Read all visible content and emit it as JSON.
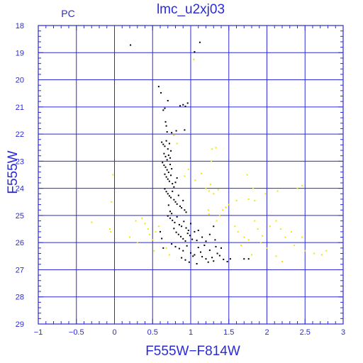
{
  "chart_data": {
    "type": "scatter",
    "title": "lmc_u2xj03",
    "corner_label": "PC",
    "xlabel": "F555W−F814W",
    "ylabel": "F555W",
    "xlim": [
      -1,
      3
    ],
    "ylim": [
      29,
      18
    ],
    "y_inverted": true,
    "grid": true,
    "x_ticks": [
      -1,
      -0.5,
      0,
      0.5,
      1,
      1.5,
      2,
      2.5,
      3
    ],
    "x_tick_labels": [
      "−1",
      "−0.5",
      "0",
      "0.5",
      "1",
      "1.5",
      "2",
      "2.5",
      "3"
    ],
    "y_ticks": [
      18,
      19,
      20,
      21,
      22,
      23,
      24,
      25,
      26,
      27,
      28,
      29
    ],
    "y_tick_labels": [
      "18",
      "19",
      "20",
      "21",
      "22",
      "23",
      "24",
      "25",
      "26",
      "27",
      "28",
      "29"
    ],
    "colors": {
      "axes": "#2a2ad6",
      "grid": "#2a2ad6",
      "series_black": "#000000",
      "series_yellow": "#f2e600"
    },
    "series": [
      {
        "color": "#000000",
        "points": [
          [
            0.21,
            18.72
          ],
          [
            1.05,
            18.97
          ],
          [
            1.12,
            18.62
          ],
          [
            0.58,
            20.25
          ],
          [
            0.61,
            20.48
          ],
          [
            0.64,
            21.12
          ],
          [
            0.66,
            21.05
          ],
          [
            0.7,
            20.77
          ],
          [
            0.9,
            20.92
          ],
          [
            0.93,
            20.98
          ],
          [
            0.86,
            20.96
          ],
          [
            0.96,
            20.86
          ],
          [
            0.67,
            21.55
          ],
          [
            0.68,
            21.7
          ],
          [
            0.69,
            21.92
          ],
          [
            0.81,
            21.88
          ],
          [
            0.75,
            21.95
          ],
          [
            0.92,
            21.85
          ],
          [
            0.62,
            22.3
          ],
          [
            0.64,
            22.38
          ],
          [
            0.66,
            22.45
          ],
          [
            0.68,
            22.25
          ],
          [
            0.7,
            22.55
          ],
          [
            0.72,
            22.35
          ],
          [
            0.74,
            22.62
          ],
          [
            0.65,
            22.72
          ],
          [
            0.67,
            22.83
          ],
          [
            0.69,
            22.95
          ],
          [
            0.71,
            22.78
          ],
          [
            0.73,
            22.88
          ],
          [
            0.63,
            23.05
          ],
          [
            0.65,
            23.15
          ],
          [
            0.67,
            23.22
          ],
          [
            0.69,
            23.32
          ],
          [
            0.71,
            23.41
          ],
          [
            0.73,
            23.12
          ],
          [
            0.75,
            23.28
          ],
          [
            0.66,
            23.48
          ],
          [
            0.68,
            23.58
          ],
          [
            0.7,
            23.66
          ],
          [
            0.72,
            23.74
          ],
          [
            0.74,
            23.52
          ],
          [
            0.76,
            23.83
          ],
          [
            0.78,
            23.95
          ],
          [
            0.8,
            23.78
          ],
          [
            0.82,
            23.62
          ],
          [
            0.66,
            24.02
          ],
          [
            0.68,
            24.12
          ],
          [
            0.7,
            24.2
          ],
          [
            0.72,
            24.28
          ],
          [
            0.74,
            24.34
          ],
          [
            0.76,
            24.11
          ],
          [
            0.78,
            24.42
          ],
          [
            0.8,
            24.5
          ],
          [
            0.82,
            24.58
          ],
          [
            0.84,
            24.26
          ],
          [
            0.86,
            24.66
          ],
          [
            0.88,
            24.72
          ],
          [
            0.9,
            24.45
          ],
          [
            0.92,
            24.8
          ],
          [
            0.94,
            24.88
          ],
          [
            0.71,
            24.62
          ],
          [
            0.73,
            24.85
          ],
          [
            0.75,
            24.93
          ],
          [
            0.7,
            25.02
          ],
          [
            0.73,
            25.1
          ],
          [
            0.76,
            25.18
          ],
          [
            0.79,
            25.26
          ],
          [
            0.82,
            25.05
          ],
          [
            0.85,
            25.34
          ],
          [
            0.88,
            25.4
          ],
          [
            0.91,
            25.22
          ],
          [
            0.94,
            25.46
          ],
          [
            0.97,
            25.55
          ],
          [
            1.0,
            25.3
          ],
          [
            0.78,
            25.48
          ],
          [
            0.81,
            25.62
          ],
          [
            0.84,
            25.7
          ],
          [
            0.87,
            25.78
          ],
          [
            0.9,
            25.86
          ],
          [
            0.93,
            25.94
          ],
          [
            0.96,
            25.66
          ],
          [
            0.99,
            25.74
          ],
          [
            1.02,
            25.88
          ],
          [
            1.05,
            25.6
          ],
          [
            1.08,
            25.92
          ],
          [
            0.75,
            26.05
          ],
          [
            0.8,
            26.15
          ],
          [
            0.85,
            26.22
          ],
          [
            0.9,
            26.3
          ],
          [
            0.95,
            26.12
          ],
          [
            1.0,
            26.38
          ],
          [
            1.05,
            26.45
          ],
          [
            1.1,
            26.18
          ],
          [
            1.15,
            26.52
          ],
          [
            1.2,
            26.6
          ],
          [
            1.25,
            26.28
          ],
          [
            1.3,
            26.68
          ],
          [
            1.35,
            26.4
          ],
          [
            1.4,
            26.2
          ],
          [
            0.88,
            26.56
          ],
          [
            0.93,
            26.64
          ],
          [
            0.98,
            26.72
          ],
          [
            1.03,
            26.5
          ],
          [
            1.08,
            26.78
          ],
          [
            1.13,
            26.35
          ],
          [
            1.18,
            26.1
          ],
          [
            1.23,
            26.72
          ],
          [
            1.28,
            26.55
          ],
          [
            1.33,
            26.15
          ],
          [
            1.38,
            26.48
          ],
          [
            1.43,
            26.62
          ],
          [
            1.48,
            26.7
          ],
          [
            1.52,
            26.6
          ],
          [
            1.7,
            26.6
          ],
          [
            1.76,
            26.6
          ],
          [
            0.62,
            25.85
          ],
          [
            0.64,
            26.2
          ],
          [
            0.6,
            25.6
          ],
          [
            1.1,
            25.55
          ],
          [
            1.15,
            25.8
          ],
          [
            1.2,
            25.95
          ],
          [
            1.25,
            25.7
          ],
          [
            1.3,
            25.4
          ],
          [
            1.32,
            25.9
          ]
        ]
      },
      {
        "color": "#f2e600",
        "points": [
          [
            1.04,
            19.25
          ],
          [
            -0.02,
            23.5
          ],
          [
            -0.04,
            24.5
          ],
          [
            -0.05,
            25.6
          ],
          [
            -0.06,
            25.5
          ],
          [
            -0.3,
            25.25
          ],
          [
            0.78,
            22.05
          ],
          [
            0.82,
            22.35
          ],
          [
            1.28,
            22.55
          ],
          [
            1.33,
            22.5
          ],
          [
            1.27,
            23.0
          ],
          [
            0.92,
            23.55
          ],
          [
            0.97,
            23.3
          ],
          [
            1.06,
            23.7
          ],
          [
            1.14,
            23.45
          ],
          [
            1.2,
            24.0
          ],
          [
            1.24,
            24.1
          ],
          [
            1.26,
            23.85
          ],
          [
            1.3,
            24.2
          ],
          [
            1.36,
            24.05
          ],
          [
            1.23,
            24.8
          ],
          [
            1.24,
            24.95
          ],
          [
            1.34,
            25.2
          ],
          [
            1.38,
            25.0
          ],
          [
            1.42,
            24.8
          ],
          [
            1.46,
            24.7
          ],
          [
            1.5,
            24.6
          ],
          [
            1.6,
            24.45
          ],
          [
            1.76,
            24.4
          ],
          [
            1.84,
            24.45
          ],
          [
            1.98,
            24.2
          ],
          [
            2.14,
            24.1
          ],
          [
            2.4,
            24.0
          ],
          [
            2.46,
            23.9
          ],
          [
            1.74,
            23.5
          ],
          [
            1.82,
            24.0
          ],
          [
            1.58,
            25.4
          ],
          [
            1.62,
            25.6
          ],
          [
            1.7,
            25.8
          ],
          [
            1.76,
            25.9
          ],
          [
            1.84,
            25.2
          ],
          [
            1.88,
            25.5
          ],
          [
            1.94,
            25.75
          ],
          [
            2.04,
            25.4
          ],
          [
            2.12,
            25.2
          ],
          [
            2.18,
            25.5
          ],
          [
            2.24,
            25.8
          ],
          [
            2.32,
            25.6
          ],
          [
            2.46,
            25.8
          ],
          [
            2.5,
            26.3
          ],
          [
            2.62,
            26.4
          ],
          [
            2.72,
            26.45
          ],
          [
            2.78,
            26.3
          ],
          [
            2.0,
            26.2
          ],
          [
            2.12,
            26.5
          ],
          [
            2.2,
            26.7
          ],
          [
            2.36,
            26.1
          ],
          [
            1.92,
            26.0
          ],
          [
            1.8,
            26.45
          ],
          [
            1.66,
            26.1
          ],
          [
            0.36,
            25.1
          ],
          [
            0.4,
            25.3
          ],
          [
            0.44,
            25.5
          ],
          [
            0.46,
            25.7
          ],
          [
            0.5,
            25.9
          ],
          [
            0.54,
            25.6
          ],
          [
            0.58,
            25.4
          ],
          [
            0.3,
            26.0
          ],
          [
            0.2,
            25.8
          ],
          [
            0.28,
            25.2
          ],
          [
            0.52,
            26.3
          ],
          [
            0.68,
            26.2
          ],
          [
            0.72,
            26.45
          ]
        ]
      }
    ]
  }
}
